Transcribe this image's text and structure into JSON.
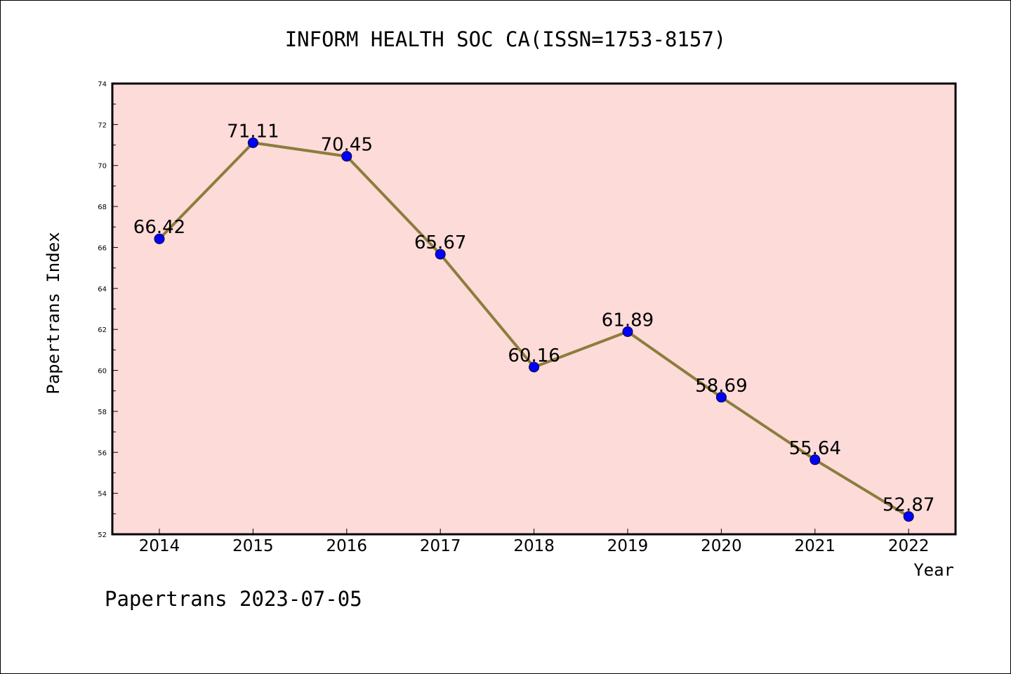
{
  "chart_data": {
    "type": "line",
    "title": "INFORM HEALTH SOC CA(ISSN=1753-8157)",
    "xlabel": "Year",
    "ylabel": "Papertrans Index",
    "categories": [
      "2014",
      "2015",
      "2016",
      "2017",
      "2018",
      "2019",
      "2020",
      "2021",
      "2022"
    ],
    "values": [
      66.42,
      71.11,
      70.45,
      65.67,
      60.16,
      61.89,
      58.69,
      55.64,
      52.87
    ],
    "value_labels": [
      "66.42",
      "71.11",
      "70.45",
      "65.67",
      "60.16",
      "61.89",
      "58.69",
      "55.64",
      "52.87"
    ],
    "ylim": [
      52,
      74
    ],
    "yticks": [
      52,
      54,
      56,
      58,
      60,
      62,
      64,
      66,
      68,
      70,
      72,
      74
    ],
    "grid": false,
    "legend": "none",
    "colors": {
      "plot_background": "#fddbd9",
      "line": "#8c7d3c",
      "marker": "#0000ff"
    }
  },
  "footer": "Papertrans 2023-07-05"
}
